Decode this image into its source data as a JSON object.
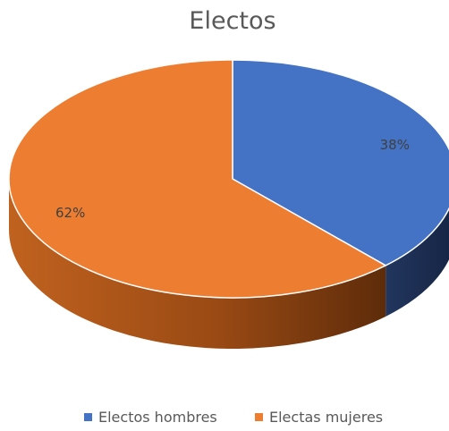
{
  "chart_data": {
    "type": "pie",
    "title": "Electos",
    "style": "3d",
    "legend_position": "bottom",
    "slices": [
      {
        "name": "Electos hombres",
        "value": 38,
        "label": "38%",
        "color": "#4472C4",
        "side_color": "#1F3864"
      },
      {
        "name": "Electas mujeres",
        "value": 62,
        "label": "62%",
        "color": "#ED7D31",
        "side_color": "#A0501C"
      }
    ]
  }
}
